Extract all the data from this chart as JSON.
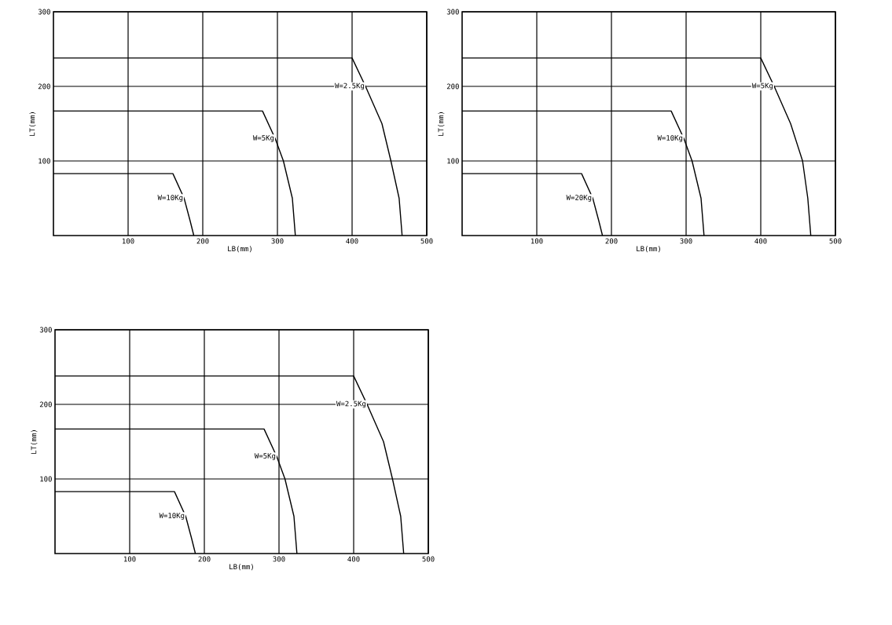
{
  "chart_data": [
    {
      "type": "line",
      "xlabel": "LB(mm)",
      "ylabel": "LT(mm)",
      "xlim": [
        0,
        500
      ],
      "ylim": [
        0,
        300
      ],
      "xticks": [
        100,
        200,
        300,
        400,
        500
      ],
      "yticks": [
        100,
        200,
        300
      ],
      "grid": true,
      "marker": "none",
      "line_style": "solid",
      "series": [
        {
          "name": "W=2.5Kg",
          "color": "#000000",
          "x": [
            0,
            400,
            418,
            440,
            452,
            463,
            467
          ],
          "values": [
            238,
            238,
            200,
            150,
            100,
            50,
            0
          ]
        },
        {
          "name": "W=5Kg",
          "color": "#000000",
          "x": [
            0,
            280,
            297,
            308,
            320,
            324
          ],
          "values": [
            167,
            167,
            130,
            100,
            50,
            0
          ]
        },
        {
          "name": "W=10Kg",
          "color": "#000000",
          "x": [
            0,
            160,
            175,
            183,
            188
          ],
          "values": [
            83,
            83,
            50,
            20,
            0
          ]
        }
      ]
    },
    {
      "type": "line",
      "xlabel": "LB(mm)",
      "ylabel": "LT(mm)",
      "xlim": [
        0,
        500
      ],
      "ylim": [
        0,
        300
      ],
      "xticks": [
        100,
        200,
        300,
        400,
        500
      ],
      "yticks": [
        100,
        200,
        300
      ],
      "grid": true,
      "marker": "none",
      "line_style": "solid",
      "series": [
        {
          "name": "W=5Kg",
          "color": "#000000",
          "x": [
            0,
            400,
            418,
            440,
            456,
            463,
            467
          ],
          "values": [
            238,
            238,
            200,
            150,
            100,
            50,
            0
          ]
        },
        {
          "name": "W=10Kg",
          "color": "#000000",
          "x": [
            0,
            280,
            297,
            308,
            320,
            324
          ],
          "values": [
            167,
            167,
            130,
            100,
            50,
            0
          ]
        },
        {
          "name": "W=20Kg",
          "color": "#000000",
          "x": [
            0,
            160,
            175,
            183,
            188
          ],
          "values": [
            83,
            83,
            50,
            20,
            0
          ]
        }
      ]
    },
    {
      "type": "line",
      "xlabel": "LB(mm)",
      "ylabel": "LT(mm)",
      "xlim": [
        0,
        500
      ],
      "ylim": [
        0,
        300
      ],
      "xticks": [
        100,
        200,
        300,
        400,
        500
      ],
      "yticks": [
        100,
        200,
        300
      ],
      "grid": true,
      "marker": "none",
      "line_style": "solid",
      "series": [
        {
          "name": "W=2.5Kg",
          "color": "#000000",
          "x": [
            0,
            400,
            418,
            440,
            452,
            463,
            467
          ],
          "values": [
            238,
            238,
            200,
            150,
            100,
            50,
            0
          ]
        },
        {
          "name": "W=5Kg",
          "color": "#000000",
          "x": [
            0,
            280,
            297,
            308,
            320,
            324
          ],
          "values": [
            167,
            167,
            130,
            100,
            50,
            0
          ]
        },
        {
          "name": "W=10Kg",
          "color": "#000000",
          "x": [
            0,
            160,
            175,
            183,
            188
          ],
          "values": [
            83,
            83,
            50,
            20,
            0
          ]
        }
      ]
    }
  ]
}
